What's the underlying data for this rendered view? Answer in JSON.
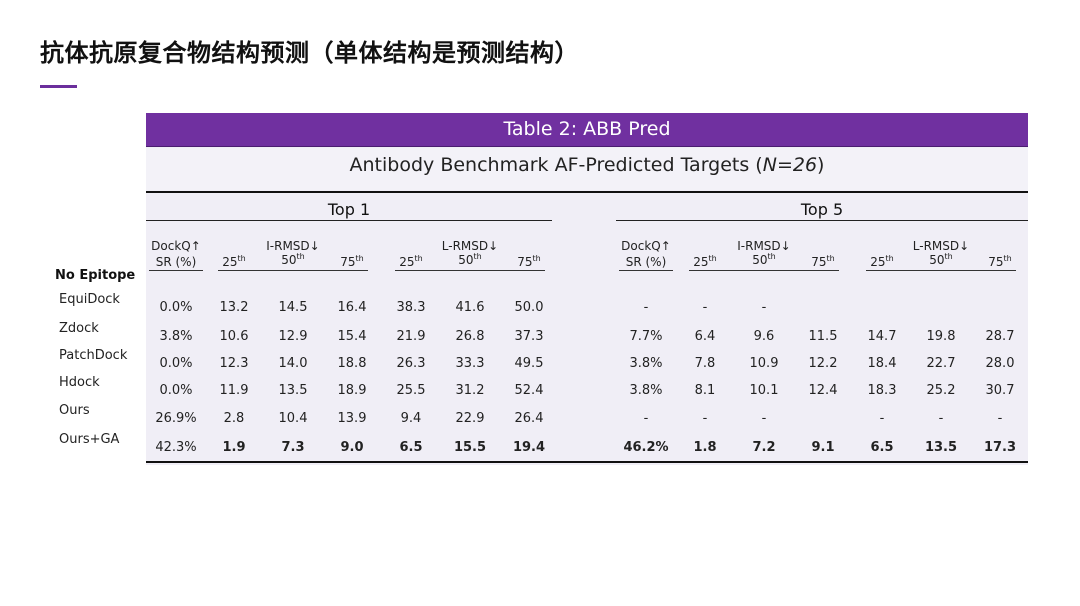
{
  "title": "抗体抗原复合物结构预测（单体结构是预测结构）",
  "table": {
    "banner": "Table 2:  ABB Pred",
    "subtitle_main": "Antibody Benchmark AF-Predicted Targets (",
    "subtitle_n": "N=26",
    "subtitle_close": ")",
    "group_top1": "Top 1",
    "group_top5": "Top 5",
    "section_label": "No Epitope",
    "headers": {
      "dockq_line1": "DockQ↑",
      "dockq_line2": "SR (%)",
      "irmsd": "I-RMSD↓",
      "lrmsd": "L-RMSD↓",
      "p25": "25",
      "p50": "50",
      "p75": "75",
      "th": "th"
    },
    "rows": [
      {
        "method": "EquiDock",
        "top1": [
          "0.0%",
          "13.2",
          "14.5",
          "16.4",
          "38.3",
          "41.6",
          "50.0"
        ],
        "top5": [
          "-",
          "-",
          "-",
          "",
          "",
          "",
          ""
        ]
      },
      {
        "method": "Zdock",
        "top1": [
          "3.8%",
          "10.6",
          "12.9",
          "15.4",
          "21.9",
          "26.8",
          "37.3"
        ],
        "top5": [
          "7.7%",
          "6.4",
          "9.6",
          "11.5",
          "14.7",
          "19.8",
          "28.7"
        ]
      },
      {
        "method": "PatchDock",
        "top1": [
          "0.0%",
          "12.3",
          "14.0",
          "18.8",
          "26.3",
          "33.3",
          "49.5"
        ],
        "top5": [
          "3.8%",
          "7.8",
          "10.9",
          "12.2",
          "18.4",
          "22.7",
          "28.0"
        ]
      },
      {
        "method": "Hdock",
        "top1": [
          "0.0%",
          "11.9",
          "13.5",
          "18.9",
          "25.5",
          "31.2",
          "52.4"
        ],
        "top5": [
          "3.8%",
          "8.1",
          "10.1",
          "12.4",
          "18.3",
          "25.2",
          "30.7"
        ]
      },
      {
        "method": "Ours",
        "top1": [
          "26.9%",
          "2.8",
          "10.4",
          "13.9",
          "9.4",
          "22.9",
          "26.4"
        ],
        "top5": [
          "-",
          "-",
          "-",
          "",
          "-",
          "-",
          "-"
        ]
      },
      {
        "method": "Ours+GA",
        "top1": [
          "42.3%",
          "1.9",
          "7.3",
          "9.0",
          "6.5",
          "15.5",
          "19.4"
        ],
        "top5": [
          "46.2%",
          "1.8",
          "7.2",
          "9.1",
          "6.5",
          "13.5",
          "17.3"
        ],
        "bold": true
      }
    ]
  }
}
